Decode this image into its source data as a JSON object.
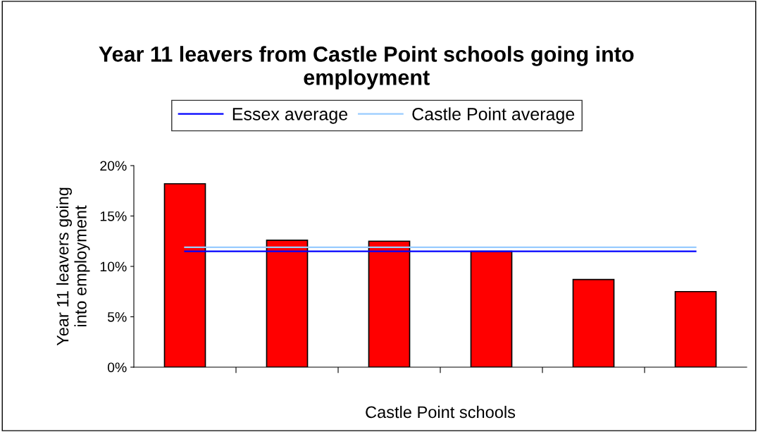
{
  "chart_data": {
    "type": "bar",
    "title": "Year 11 leavers from Castle Point schools going into employment",
    "xlabel": "Castle Point schools",
    "ylabel": "Year 11 leavers going\ninto employment",
    "categories": [
      null,
      null,
      null,
      null,
      null,
      null
    ],
    "series": [
      {
        "color": "#ff0000",
        "values": [
          18.2,
          12.6,
          12.5,
          11.5,
          8.7,
          7.5
        ]
      },
      {
        "type": "line",
        "name": "Essex average",
        "color": "#0000ff",
        "values": [
          11.5,
          11.5,
          11.5,
          11.5,
          11.5,
          11.5
        ]
      },
      {
        "type": "line",
        "name": "Castle Point average",
        "color": "#99ccff",
        "values": [
          11.9,
          11.9,
          11.9,
          11.9,
          11.9,
          11.9
        ]
      }
    ],
    "ylim": [
      0,
      20
    ],
    "yticks": [
      {
        "value": 0,
        "label": "0%"
      },
      {
        "value": 5,
        "label": "5%"
      },
      {
        "value": 10,
        "label": "10%"
      },
      {
        "value": 15,
        "label": "15%"
      },
      {
        "value": 20,
        "label": "20%"
      }
    ],
    "grid": false,
    "legend": "top",
    "marker": "none",
    "line_style": "solid"
  }
}
